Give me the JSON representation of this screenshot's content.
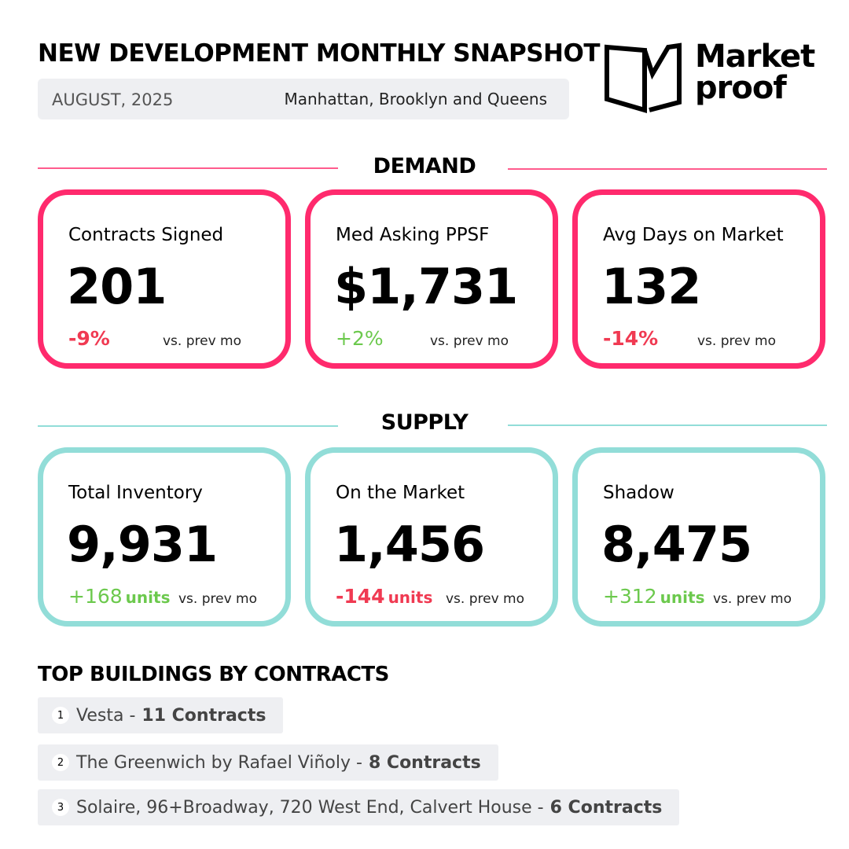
{
  "header": {
    "title": "NEW DEVELOPMENT MONTHLY SNAPSHOT",
    "date": "AUGUST, 2025",
    "region": "Manhattan, Brooklyn and Queens"
  },
  "logo": {
    "line1": "Market",
    "line2": "proof"
  },
  "demand": {
    "title": "DEMAND",
    "cards": [
      {
        "label": "Contracts Signed",
        "value": "201",
        "change": "-9%",
        "compare": "vs. prev mo"
      },
      {
        "label": "Med Asking PPSF",
        "value": "$1,731",
        "change": "+2%",
        "compare": "vs. prev mo"
      },
      {
        "label": "Avg Days on Market",
        "value": "132",
        "change": "-14%",
        "compare": "vs. prev mo"
      }
    ]
  },
  "supply": {
    "title": "SUPPLY",
    "cards": [
      {
        "label": "Total Inventory",
        "value": "9,931",
        "change": "+168",
        "unit": "units",
        "compare": "vs. prev mo"
      },
      {
        "label": "On the Market",
        "value": "1,456",
        "change": "-144",
        "unit": "units",
        "compare": "vs. prev mo"
      },
      {
        "label": "Shadow",
        "value": "8,475",
        "change": "+312",
        "unit": "units",
        "compare": "vs. prev mo"
      }
    ]
  },
  "top_buildings": {
    "title": "TOP BUILDINGS BY CONTRACTS",
    "items": [
      {
        "rank": "1",
        "name": "Vesta -",
        "contracts": "11 Contracts"
      },
      {
        "rank": "2",
        "name": "The Greenwich by Rafael Viñoly -",
        "contracts": "8 Contracts"
      },
      {
        "rank": "3",
        "name": "Solaire, 96+Broadway, 720 West End, Calvert House -",
        "contracts": "6 Contracts"
      }
    ]
  }
}
